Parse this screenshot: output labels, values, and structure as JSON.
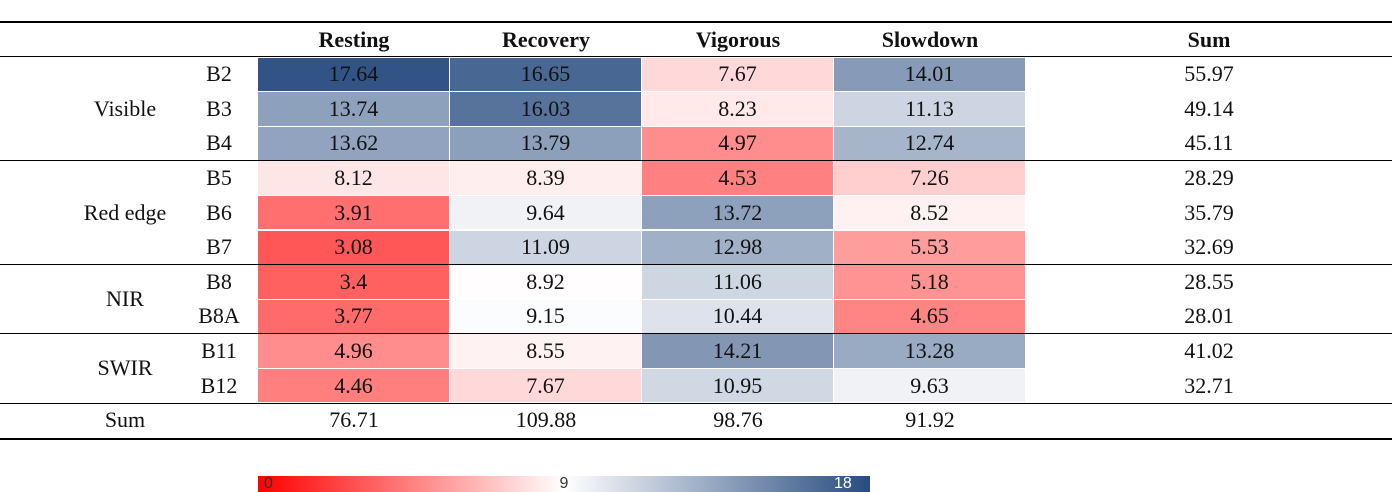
{
  "table": {
    "columns": [
      "Resting",
      "Recovery",
      "Vigorous",
      "Slowdown",
      "Sum"
    ],
    "groups": [
      {
        "name": "Visible",
        "rows": [
          {
            "band": "B2",
            "values": [
              17.64,
              16.65,
              7.67,
              14.01
            ],
            "sum": 55.97
          },
          {
            "band": "B3",
            "values": [
              13.74,
              16.03,
              8.23,
              11.13
            ],
            "sum": 49.14
          },
          {
            "band": "B4",
            "values": [
              13.62,
              13.79,
              4.97,
              12.74
            ],
            "sum": 45.11
          }
        ]
      },
      {
        "name": "Red edge",
        "rows": [
          {
            "band": "B5",
            "values": [
              8.12,
              8.39,
              4.53,
              7.26
            ],
            "sum": 28.29
          },
          {
            "band": "B6",
            "values": [
              3.91,
              9.64,
              13.72,
              8.52
            ],
            "sum": 35.79
          },
          {
            "band": "B7",
            "values": [
              3.08,
              11.09,
              12.98,
              5.53
            ],
            "sum": 32.69
          }
        ]
      },
      {
        "name": "NIR",
        "rows": [
          {
            "band": "B8",
            "values": [
              3.4,
              8.92,
              11.06,
              5.18
            ],
            "sum": 28.55
          },
          {
            "band": "B8A",
            "values": [
              3.77,
              9.15,
              10.44,
              4.65
            ],
            "sum": 28.01
          }
        ]
      },
      {
        "name": "SWIR",
        "rows": [
          {
            "band": "B11",
            "values": [
              4.96,
              8.55,
              14.21,
              13.28
            ],
            "sum": 41.02
          },
          {
            "band": "B12",
            "values": [
              4.46,
              7.67,
              10.95,
              9.63
            ],
            "sum": 32.71
          }
        ]
      }
    ],
    "sum_row": {
      "label": "Sum",
      "values": [
        76.71,
        109.88,
        98.76,
        91.92
      ]
    },
    "colorbar": {
      "ticks": [
        0,
        9,
        18
      ],
      "colors": [
        "#ff0000",
        "#ffffff",
        "#284c80"
      ]
    }
  }
}
